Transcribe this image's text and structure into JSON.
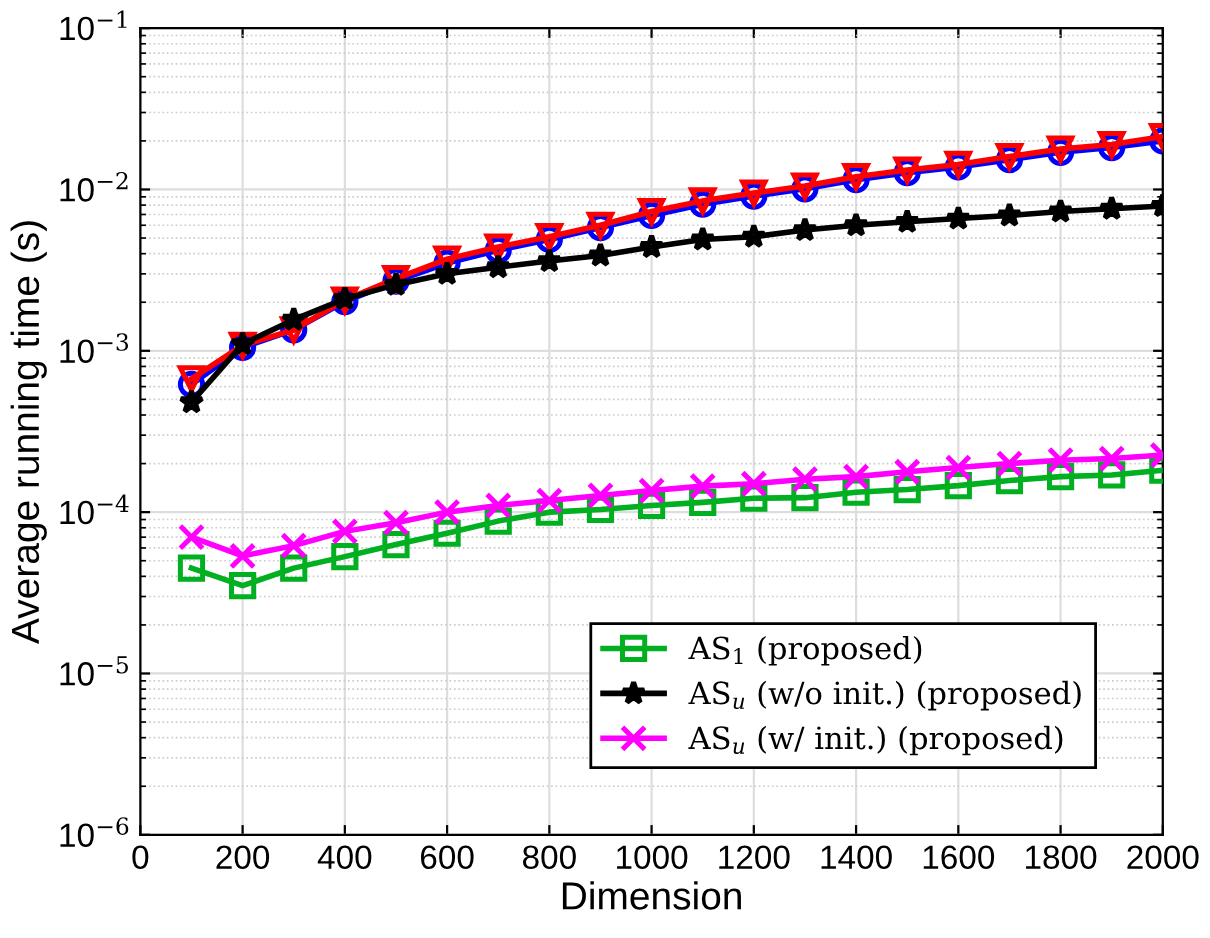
{
  "chart_data": {
    "type": "line",
    "xlabel": "Dimension",
    "ylabel": "Average running time (s)",
    "x": [
      100,
      200,
      300,
      400,
      500,
      600,
      700,
      800,
      900,
      1000,
      1100,
      1200,
      1300,
      1400,
      1500,
      1600,
      1700,
      1800,
      1900,
      2000
    ],
    "series": [
      {
        "color": "#0000ff",
        "marker": "circle",
        "values": [
          0.00062,
          0.00105,
          0.00135,
          0.00202,
          0.0027,
          0.0035,
          0.0042,
          0.0049,
          0.0058,
          0.0069,
          0.0081,
          0.0091,
          0.0101,
          0.0115,
          0.0127,
          0.0138,
          0.0153,
          0.017,
          0.0182,
          0.02
        ]
      },
      {
        "color": "#ff0000",
        "marker": "triangle",
        "values": [
          0.00067,
          0.00108,
          0.00135,
          0.00206,
          0.0028,
          0.0037,
          0.0044,
          0.0051,
          0.006,
          0.0073,
          0.0085,
          0.0095,
          0.0105,
          0.012,
          0.0132,
          0.0143,
          0.016,
          0.0178,
          0.019,
          0.0213
        ]
      },
      {
        "name": "AS$_{1}$ (proposed)",
        "color": "#00b020",
        "marker": "square",
        "values": [
          4.5e-05,
          3.5e-05,
          4.5e-05,
          5.3e-05,
          6.3e-05,
          7.4e-05,
          8.8e-05,
          0.0001,
          0.000104,
          0.00011,
          0.000115,
          0.000122,
          0.000123,
          0.000133,
          0.000138,
          0.000146,
          0.000157,
          0.000166,
          0.00017,
          0.000182
        ]
      },
      {
        "name": "AS$_{u}$ (w/o init.) (proposed)",
        "color": "#000000",
        "marker": "star",
        "values": [
          0.00048,
          0.0011,
          0.00156,
          0.0021,
          0.00257,
          0.003,
          0.0033,
          0.0036,
          0.0039,
          0.0044,
          0.0049,
          0.0051,
          0.0056,
          0.006,
          0.0063,
          0.0066,
          0.0069,
          0.0073,
          0.0076,
          0.0079
        ]
      },
      {
        "name": "AS$_{u}$ (w/ init.) (proposed)",
        "color": "#ff00ff",
        "marker": "cross",
        "values": [
          7e-05,
          5.35e-05,
          6.2e-05,
          7.6e-05,
          8.6e-05,
          0.0001,
          0.00011,
          0.000118,
          0.000127,
          0.000136,
          0.000145,
          0.00015,
          0.00016,
          0.000166,
          0.000178,
          0.000189,
          0.0002,
          0.00021,
          0.000215,
          0.000226
        ]
      }
    ],
    "log": "y",
    "xlim": [
      0,
      2000
    ],
    "xticks": [
      0,
      200,
      400,
      600,
      800,
      1000,
      1200,
      1400,
      1600,
      1800,
      2000
    ],
    "ylim": [
      1e-06,
      0.1
    ],
    "yticks": [
      {
        "value": 1e-06,
        "label": "10$^{−6}$"
      },
      {
        "value": 1e-05,
        "label": "10$^{−5}$"
      },
      {
        "value": 0.0001,
        "label": "10$^{−4}$"
      },
      {
        "value": 0.001,
        "label": "10$^{−3}$"
      },
      {
        "value": 0.01,
        "label": "10$^{−2}$"
      },
      {
        "value": 0.1,
        "label": "10$^{−1}$"
      }
    ],
    "grid": true,
    "legend": "bottom right"
  }
}
